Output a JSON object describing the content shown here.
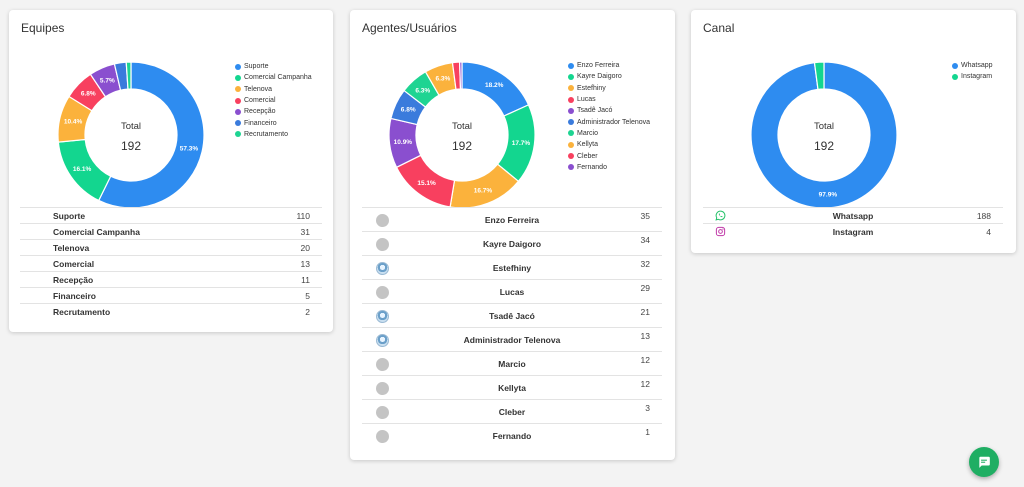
{
  "chart_data": [
    {
      "type": "pie",
      "title": "Equipes",
      "center_label": "Total",
      "center_value": "192",
      "total": 192,
      "categories": [
        "Suporte",
        "Comercial Campanha",
        "Telenova",
        "Comercial",
        "Recepção",
        "Financeiro",
        "Recrutamento"
      ],
      "values": [
        110,
        31,
        20,
        13,
        11,
        5,
        2
      ],
      "value_labels": [
        "110",
        "31",
        "20",
        "13",
        "11",
        "5",
        "2"
      ],
      "colors": [
        "#2e8cf0",
        "#13d68f",
        "#fbb23c",
        "#f8405f",
        "#8a4fcf",
        "#3a7bdc",
        "#1ed492"
      ],
      "slice_labels": [
        "57.3%",
        "16.1%",
        "10.4%",
        "6.8%",
        "5.7%",
        "",
        ""
      ],
      "legend_position": "right"
    },
    {
      "type": "pie",
      "title": "Agentes/Usuários",
      "center_label": "Total",
      "center_value": "192",
      "total": 192,
      "categories": [
        "Enzo Ferreira",
        "Kayre Daigoro",
        "Estefhiny",
        "Lucas",
        "Tsadê Jacó",
        "Administrador Telenova",
        "Marcio",
        "Kellyta",
        "Cleber",
        "Fernando"
      ],
      "values": [
        35,
        34,
        32,
        29,
        21,
        13,
        12,
        12,
        3,
        1
      ],
      "value_labels": [
        "35",
        "34",
        "32",
        "29",
        "21",
        "13",
        "12",
        "12",
        "3",
        "1"
      ],
      "colors": [
        "#2e8cf0",
        "#13d68f",
        "#fbb23c",
        "#f8405f",
        "#8a4fcf",
        "#3a7bdc",
        "#1ed492",
        "#fbb23c",
        "#f8405f",
        "#8a4fcf"
      ],
      "slice_labels": [
        "18.2%",
        "17.7%",
        "16.7%",
        "15.1%",
        "10.9%",
        "6.8%",
        "6.3%",
        "6.3%",
        "",
        ""
      ],
      "legend_position": "right",
      "photo_avatars": [
        false,
        false,
        true,
        false,
        true,
        true,
        false,
        false,
        false,
        false
      ]
    },
    {
      "type": "pie",
      "title": "Canal",
      "center_label": "Total",
      "center_value": "192",
      "total": 192,
      "categories": [
        "Whatsapp",
        "Instagram"
      ],
      "values": [
        188,
        4
      ],
      "value_labels": [
        "188",
        "4"
      ],
      "colors": [
        "#2e8cf0",
        "#13d68f"
      ],
      "slice_labels": [
        "97.9%",
        ""
      ],
      "legend_position": "top-right",
      "icons": [
        "whatsapp-icon",
        "instagram-icon"
      ],
      "icon_colors": [
        "#25c26a",
        "#c03aa8"
      ]
    }
  ],
  "fab": {
    "icon": "chat-icon",
    "color": "#1fae63"
  }
}
